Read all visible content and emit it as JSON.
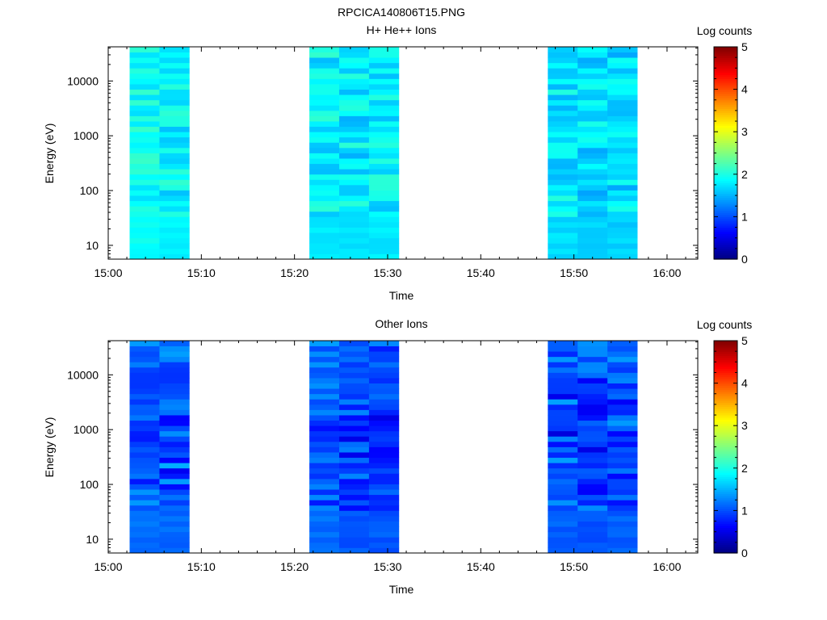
{
  "figure_title": "RPCICA140806T15.PNG",
  "colorbar": {
    "label": "Log counts",
    "ticks": [
      "0",
      "1",
      "2",
      "3",
      "4",
      "5"
    ],
    "min": 0,
    "max": 5
  },
  "chart_data": [
    {
      "type": "heatmap",
      "title": "H+ He++ Ions",
      "xlabel": "Time",
      "ylabel": "Energy (eV)",
      "x_ticks": [
        "15:00",
        "15:10",
        "15:20",
        "15:30",
        "15:40",
        "15:50",
        "16:00"
      ],
      "x_tick_minutes": [
        0,
        10,
        20,
        30,
        40,
        50,
        60
      ],
      "xlim_minutes": [
        0,
        63.3
      ],
      "y_scale": "log",
      "y_ticks": [
        "10",
        "100",
        "1000",
        "10000"
      ],
      "ylim": [
        5.6,
        42000
      ],
      "columns": [
        {
          "start": 2.3,
          "end": 5.5,
          "base": 1.95,
          "var": 0.25,
          "dip": 0.0,
          "seed": 11
        },
        {
          "start": 5.5,
          "end": 8.7,
          "base": 1.85,
          "var": 0.28,
          "dip": 0.0,
          "seed": 12
        },
        {
          "start": 21.6,
          "end": 24.8,
          "base": 1.85,
          "var": 0.3,
          "dip": 0.0,
          "seed": 13
        },
        {
          "start": 24.8,
          "end": 28.0,
          "base": 1.78,
          "var": 0.3,
          "dip": 0.0,
          "seed": 14
        },
        {
          "start": 28.0,
          "end": 31.2,
          "base": 1.8,
          "var": 0.3,
          "dip": 0.0,
          "seed": 15
        },
        {
          "start": 47.2,
          "end": 50.4,
          "base": 1.75,
          "var": 0.3,
          "dip": 0.0,
          "seed": 16
        },
        {
          "start": 50.4,
          "end": 53.6,
          "base": 1.7,
          "var": 0.3,
          "dip": 0.0,
          "seed": 17
        },
        {
          "start": 53.6,
          "end": 56.8,
          "base": 1.7,
          "var": 0.3,
          "dip": 0.0,
          "seed": 18
        }
      ]
    },
    {
      "type": "heatmap",
      "title": "Other Ions",
      "xlabel": "Time",
      "ylabel": "Energy (eV)",
      "x_ticks": [
        "15:00",
        "15:10",
        "15:20",
        "15:30",
        "15:40",
        "15:50",
        "16:00"
      ],
      "x_tick_minutes": [
        0,
        10,
        20,
        30,
        40,
        50,
        60
      ],
      "xlim_minutes": [
        0,
        63.3
      ],
      "y_scale": "log",
      "y_ticks": [
        "10",
        "100",
        "1000",
        "10000"
      ],
      "ylim": [
        5.6,
        42000
      ],
      "columns": [
        {
          "start": 2.3,
          "end": 5.5,
          "base": 1.2,
          "var": 0.28,
          "dip": 0.3,
          "seed": 21
        },
        {
          "start": 5.5,
          "end": 8.7,
          "base": 1.2,
          "var": 0.3,
          "dip": 0.3,
          "seed": 22
        },
        {
          "start": 21.6,
          "end": 24.8,
          "base": 1.2,
          "var": 0.3,
          "dip": 0.3,
          "seed": 23
        },
        {
          "start": 24.8,
          "end": 28.0,
          "base": 1.1,
          "var": 0.3,
          "dip": 0.35,
          "seed": 24
        },
        {
          "start": 28.0,
          "end": 31.2,
          "base": 1.1,
          "var": 0.3,
          "dip": 0.35,
          "seed": 25
        },
        {
          "start": 47.2,
          "end": 50.4,
          "base": 1.15,
          "var": 0.3,
          "dip": 0.35,
          "seed": 26
        },
        {
          "start": 50.4,
          "end": 53.6,
          "base": 1.1,
          "var": 0.3,
          "dip": 0.35,
          "seed": 27
        },
        {
          "start": 53.6,
          "end": 56.8,
          "base": 1.15,
          "var": 0.3,
          "dip": 0.3,
          "seed": 28
        }
      ]
    }
  ]
}
